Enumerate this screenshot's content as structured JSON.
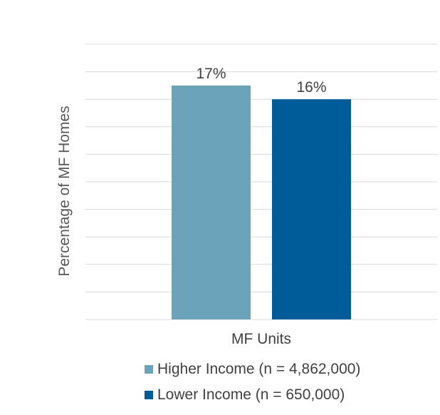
{
  "chart_data": {
    "type": "bar",
    "title": "",
    "xlabel": "",
    "ylabel": "Percentage of MF Homes",
    "categories": [
      "MF Units"
    ],
    "ylim": [
      0,
      20
    ],
    "y_tick_step": 2,
    "y_tick_labels_shown": false,
    "grid": true,
    "legend_position": "bottom",
    "series": [
      {
        "name": "Higher Income (n = 4,862,000)",
        "values": [
          17
        ],
        "label": "17%",
        "color": "#6ba4ba"
      },
      {
        "name": "Lower Income (n = 650,000)",
        "values": [
          16
        ],
        "label": "16%",
        "color": "#005b99"
      }
    ]
  }
}
